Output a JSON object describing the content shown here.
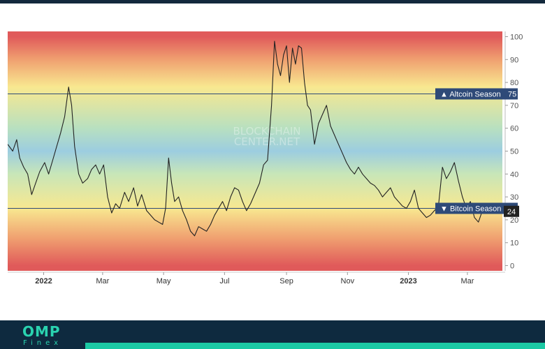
{
  "brand": {
    "logo_main": "OMP",
    "logo_sub": "Finex"
  },
  "watermark": {
    "line1": "BLOCKCHAIN",
    "line2": "CENTER.NET"
  },
  "chart_data": {
    "type": "line",
    "title": "",
    "xlabel": "",
    "ylabel": "",
    "ylim": [
      0,
      100
    ],
    "y_ticks": [
      0,
      10,
      20,
      30,
      40,
      50,
      60,
      70,
      80,
      90,
      100
    ],
    "x_ticks": [
      {
        "label": "2022",
        "date": "2022-01-01",
        "bold": true
      },
      {
        "label": "Mar",
        "date": "2022-03-01",
        "bold": false
      },
      {
        "label": "May",
        "date": "2022-05-01",
        "bold": false
      },
      {
        "label": "Jul",
        "date": "2022-07-01",
        "bold": false
      },
      {
        "label": "Sep",
        "date": "2022-09-01",
        "bold": false
      },
      {
        "label": "Nov",
        "date": "2022-11-01",
        "bold": false
      },
      {
        "label": "2023",
        "date": "2023-01-01",
        "bold": true
      },
      {
        "label": "Mar",
        "date": "2023-03-01",
        "bold": false
      }
    ],
    "xlim": [
      "2021-11-26",
      "2023-04-05"
    ],
    "reference_lines": [
      {
        "label": "Altcoin Season",
        "value": 75,
        "marker": "▲",
        "color": "#2e4a78"
      },
      {
        "label": "Bitcoin Season",
        "value": 25,
        "marker": "▼",
        "color": "#2e4a78"
      }
    ],
    "current_value": {
      "value": 24,
      "label": "24",
      "color": "#222222"
    },
    "background_gradient": [
      {
        "value": 100,
        "color": "#e05a5a"
      },
      {
        "value": 90,
        "color": "#f0a070"
      },
      {
        "value": 78,
        "color": "#f8e890"
      },
      {
        "value": 60,
        "color": "#b8e0c0"
      },
      {
        "value": 50,
        "color": "#9ccde0"
      },
      {
        "value": 40,
        "color": "#c8e6b8"
      },
      {
        "value": 25,
        "color": "#f8e890"
      },
      {
        "value": 12,
        "color": "#f0a070"
      },
      {
        "value": 0,
        "color": "#e05a5a"
      }
    ],
    "series": [
      {
        "color": "#222222",
        "points": [
          [
            "2021-11-26",
            53
          ],
          [
            "2021-12-01",
            50
          ],
          [
            "2021-12-05",
            55
          ],
          [
            "2021-12-08",
            47
          ],
          [
            "2021-12-12",
            43
          ],
          [
            "2021-12-16",
            40
          ],
          [
            "2021-12-20",
            31
          ],
          [
            "2021-12-24",
            36
          ],
          [
            "2021-12-28",
            41
          ],
          [
            "2022-01-02",
            45
          ],
          [
            "2022-01-06",
            40
          ],
          [
            "2022-01-10",
            46
          ],
          [
            "2022-01-14",
            52
          ],
          [
            "2022-01-18",
            58
          ],
          [
            "2022-01-22",
            65
          ],
          [
            "2022-01-26",
            78
          ],
          [
            "2022-01-29",
            70
          ],
          [
            "2022-02-01",
            52
          ],
          [
            "2022-02-05",
            40
          ],
          [
            "2022-02-09",
            36
          ],
          [
            "2022-02-14",
            38
          ],
          [
            "2022-02-18",
            42
          ],
          [
            "2022-02-22",
            44
          ],
          [
            "2022-02-26",
            40
          ],
          [
            "2022-03-02",
            44
          ],
          [
            "2022-03-06",
            30
          ],
          [
            "2022-03-10",
            23
          ],
          [
            "2022-03-14",
            27
          ],
          [
            "2022-03-18",
            25
          ],
          [
            "2022-03-23",
            32
          ],
          [
            "2022-03-27",
            28
          ],
          [
            "2022-04-01",
            34
          ],
          [
            "2022-04-05",
            26
          ],
          [
            "2022-04-09",
            31
          ],
          [
            "2022-04-14",
            24
          ],
          [
            "2022-04-18",
            22
          ],
          [
            "2022-04-22",
            20
          ],
          [
            "2022-04-26",
            19
          ],
          [
            "2022-04-30",
            18
          ],
          [
            "2022-05-03",
            25
          ],
          [
            "2022-05-06",
            47
          ],
          [
            "2022-05-09",
            36
          ],
          [
            "2022-05-12",
            28
          ],
          [
            "2022-05-16",
            30
          ],
          [
            "2022-05-20",
            24
          ],
          [
            "2022-05-24",
            20
          ],
          [
            "2022-05-28",
            15
          ],
          [
            "2022-06-01",
            13
          ],
          [
            "2022-06-05",
            17
          ],
          [
            "2022-06-09",
            16
          ],
          [
            "2022-06-13",
            15
          ],
          [
            "2022-06-17",
            18
          ],
          [
            "2022-06-21",
            22
          ],
          [
            "2022-06-25",
            25
          ],
          [
            "2022-06-29",
            28
          ],
          [
            "2022-07-03",
            24
          ],
          [
            "2022-07-07",
            30
          ],
          [
            "2022-07-11",
            34
          ],
          [
            "2022-07-15",
            33
          ],
          [
            "2022-07-19",
            28
          ],
          [
            "2022-07-23",
            24
          ],
          [
            "2022-07-27",
            27
          ],
          [
            "2022-08-01",
            32
          ],
          [
            "2022-08-05",
            36
          ],
          [
            "2022-08-09",
            44
          ],
          [
            "2022-08-13",
            46
          ],
          [
            "2022-08-17",
            70
          ],
          [
            "2022-08-20",
            98
          ],
          [
            "2022-08-23",
            88
          ],
          [
            "2022-08-26",
            83
          ],
          [
            "2022-08-29",
            92
          ],
          [
            "2022-09-01",
            96
          ],
          [
            "2022-09-04",
            80
          ],
          [
            "2022-09-07",
            95
          ],
          [
            "2022-09-10",
            88
          ],
          [
            "2022-09-13",
            96
          ],
          [
            "2022-09-16",
            95
          ],
          [
            "2022-09-19",
            80
          ],
          [
            "2022-09-22",
            70
          ],
          [
            "2022-09-25",
            68
          ],
          [
            "2022-09-29",
            53
          ],
          [
            "2022-10-03",
            62
          ],
          [
            "2022-10-07",
            66
          ],
          [
            "2022-10-11",
            70
          ],
          [
            "2022-10-15",
            61
          ],
          [
            "2022-10-19",
            57
          ],
          [
            "2022-10-23",
            53
          ],
          [
            "2022-10-27",
            49
          ],
          [
            "2022-10-31",
            45
          ],
          [
            "2022-11-04",
            42
          ],
          [
            "2022-11-08",
            40
          ],
          [
            "2022-11-12",
            43
          ],
          [
            "2022-11-16",
            40
          ],
          [
            "2022-11-20",
            38
          ],
          [
            "2022-11-24",
            36
          ],
          [
            "2022-11-28",
            35
          ],
          [
            "2022-12-02",
            33
          ],
          [
            "2022-12-06",
            30
          ],
          [
            "2022-12-10",
            32
          ],
          [
            "2022-12-14",
            34
          ],
          [
            "2022-12-18",
            30
          ],
          [
            "2022-12-22",
            28
          ],
          [
            "2022-12-26",
            26
          ],
          [
            "2022-12-30",
            25
          ],
          [
            "2023-01-03",
            28
          ],
          [
            "2023-01-07",
            33
          ],
          [
            "2023-01-11",
            25
          ],
          [
            "2023-01-15",
            23
          ],
          [
            "2023-01-19",
            21
          ],
          [
            "2023-01-23",
            22
          ],
          [
            "2023-01-27",
            24
          ],
          [
            "2023-01-31",
            26
          ],
          [
            "2023-02-04",
            43
          ],
          [
            "2023-02-08",
            38
          ],
          [
            "2023-02-12",
            41
          ],
          [
            "2023-02-16",
            45
          ],
          [
            "2023-02-20",
            37
          ],
          [
            "2023-02-24",
            30
          ],
          [
            "2023-02-28",
            25
          ],
          [
            "2023-03-04",
            28
          ],
          [
            "2023-03-08",
            21
          ],
          [
            "2023-03-12",
            19
          ],
          [
            "2023-03-16",
            24
          ],
          [
            "2023-03-20",
            27
          ],
          [
            "2023-03-24",
            25
          ],
          [
            "2023-03-28",
            23
          ],
          [
            "2023-04-02",
            25
          ],
          [
            "2023-04-05",
            24
          ]
        ]
      }
    ]
  }
}
